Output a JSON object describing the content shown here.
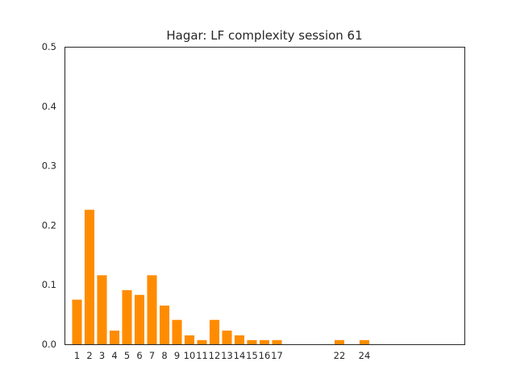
{
  "chart_data": {
    "type": "bar",
    "title": "Hagar: LF complexity session 61",
    "xlabel": "",
    "ylabel": "",
    "bar_color": "#ff8c00",
    "xlim": [
      0,
      32
    ],
    "ylim": [
      0,
      0.5
    ],
    "yticks": [
      "0.0",
      "0.1",
      "0.2",
      "0.3",
      "0.4",
      "0.5"
    ],
    "ytick_values": [
      0,
      0.1,
      0.2,
      0.3,
      0.4,
      0.5
    ],
    "x": [
      1,
      2,
      3,
      4,
      5,
      6,
      7,
      8,
      9,
      10,
      11,
      12,
      13,
      14,
      15,
      16,
      17,
      22,
      24
    ],
    "values": [
      0.075,
      0.226,
      0.116,
      0.023,
      0.091,
      0.083,
      0.116,
      0.065,
      0.041,
      0.015,
      0.007,
      0.041,
      0.023,
      0.015,
      0.007,
      0.007,
      0.007,
      0.007,
      0.007
    ],
    "xtick_labels": [
      "1",
      "2",
      "3",
      "4",
      "5",
      "6",
      "7",
      "8",
      "9",
      "10",
      "11",
      "12",
      "13",
      "14",
      "15",
      "16",
      "17",
      "22",
      "24"
    ],
    "grid": false,
    "legend": "none"
  }
}
